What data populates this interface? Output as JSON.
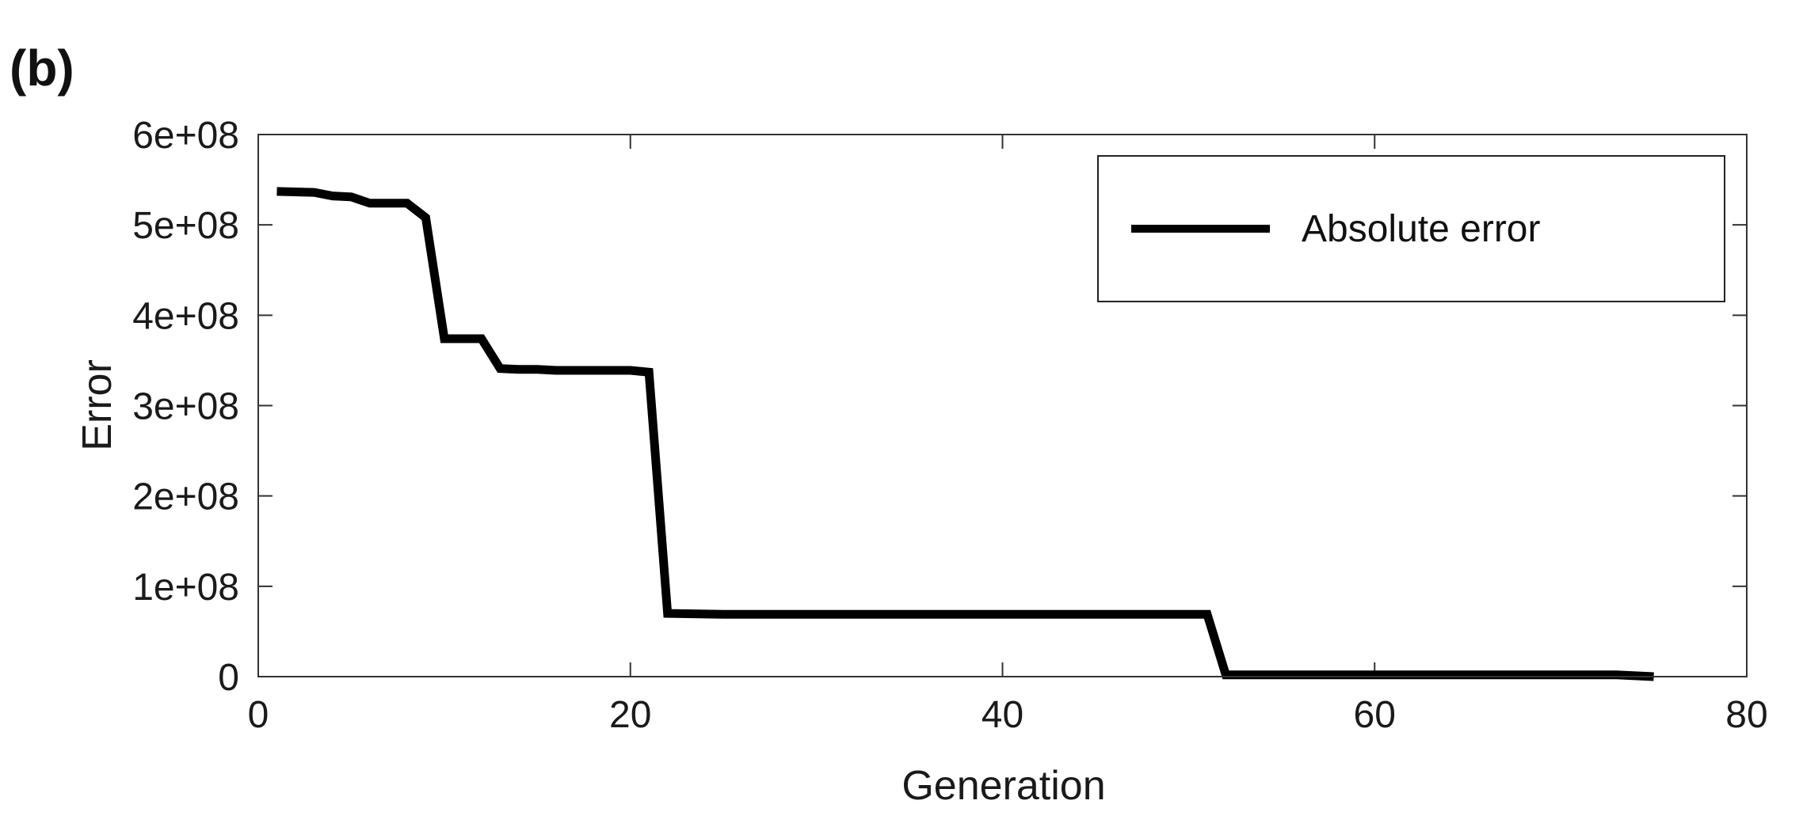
{
  "panel_label": "(b)",
  "chart_data": {
    "type": "line",
    "title": "",
    "xlabel": "Generation",
    "ylabel": "Error",
    "xlim": [
      0,
      80
    ],
    "ylim": [
      0,
      600000000
    ],
    "x_ticks": [
      0,
      20,
      40,
      60,
      80
    ],
    "x_tick_labels": [
      "0",
      "20",
      "40",
      "60",
      "80"
    ],
    "y_ticks": [
      0,
      100000000,
      200000000,
      300000000,
      400000000,
      500000000,
      600000000
    ],
    "y_tick_labels": [
      "0",
      "1e+08",
      "2e+08",
      "3e+08",
      "4e+08",
      "5e+08",
      "6e+08"
    ],
    "grid": false,
    "legend_position": "top-right",
    "series": [
      {
        "name": "Absolute error",
        "color": "#000000",
        "x": [
          1,
          3,
          4,
          5,
          6,
          7,
          8,
          9,
          10,
          11,
          12,
          13,
          14,
          15,
          16,
          17,
          18,
          19,
          20,
          21,
          22,
          25,
          30,
          40,
          50,
          51,
          52,
          60,
          70,
          73,
          75
        ],
        "y": [
          537000000,
          536000000,
          532000000,
          531000000,
          524000000,
          524000000,
          524000000,
          508000000,
          374000000,
          374000000,
          374000000,
          341000000,
          340000000,
          340000000,
          339000000,
          339000000,
          339000000,
          339000000,
          339000000,
          337000000,
          70000000,
          69000000,
          69000000,
          69000000,
          69000000,
          69000000,
          2000000,
          2000000,
          2000000,
          2000000,
          0
        ]
      }
    ]
  }
}
